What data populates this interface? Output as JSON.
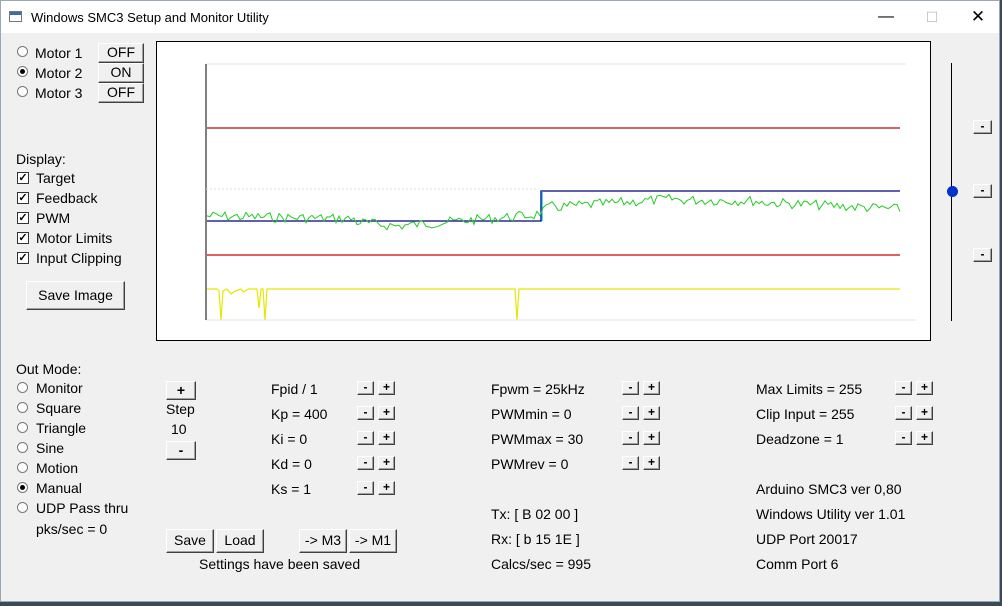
{
  "window": {
    "title": "Windows SMC3 Setup and Monitor Utility",
    "min_icon": "minimize-icon",
    "max_icon": "maximize-icon",
    "close_icon": "close-icon"
  },
  "motors": [
    {
      "label": "Motor 1",
      "state": "OFF",
      "selected": false
    },
    {
      "label": "Motor 2",
      "state": "ON",
      "selected": true
    },
    {
      "label": "Motor 3",
      "state": "OFF",
      "selected": false
    }
  ],
  "display": {
    "heading": "Display:",
    "items": [
      {
        "label": "Target",
        "checked": true
      },
      {
        "label": "Feedback",
        "checked": true
      },
      {
        "label": "PWM",
        "checked": true
      },
      {
        "label": "Motor Limits",
        "checked": true
      },
      {
        "label": "Input Clipping",
        "checked": true
      }
    ],
    "save_image": "Save Image"
  },
  "out_mode": {
    "heading": "Out Mode:",
    "items": [
      {
        "label": "Monitor",
        "selected": false
      },
      {
        "label": "Square",
        "selected": false
      },
      {
        "label": "Triangle",
        "selected": false
      },
      {
        "label": "Sine",
        "selected": false
      },
      {
        "label": "Motion",
        "selected": false
      },
      {
        "label": "Manual",
        "selected": true
      },
      {
        "label": "UDP Pass thru",
        "selected": false
      }
    ],
    "pks": "pks/sec = 0"
  },
  "step": {
    "plus": "+",
    "label": "Step",
    "value": "10",
    "minus": "-"
  },
  "pid": [
    {
      "label": "Fpid / 1"
    },
    {
      "label": "Kp = 400"
    },
    {
      "label": "Ki = 0"
    },
    {
      "label": "Kd = 0"
    },
    {
      "label": "Ks = 1"
    }
  ],
  "pwm": [
    {
      "label": "Fpwm = 25kHz"
    },
    {
      "label": "PWMmin = 0"
    },
    {
      "label": "PWMmax = 30"
    },
    {
      "label": "PWMrev = 0"
    }
  ],
  "limits": [
    {
      "label": "Max Limits = 255"
    },
    {
      "label": "Clip Input = 255"
    },
    {
      "label": "Deadzone = 1"
    }
  ],
  "pm": {
    "minus": "-",
    "plus": "+"
  },
  "comms": {
    "tx": "Tx: [ B 02 00 ]",
    "rx": "Rx: [ b 15 1E ]",
    "calcs": "Calcs/sec = 995"
  },
  "info": {
    "arduino": "Arduino SMC3 ver 0,80",
    "utility": "Windows Utility ver 1.01",
    "udp": "UDP Port 20017",
    "comm": "Comm Port 6"
  },
  "buttons": {
    "save": "Save",
    "load": "Load",
    "to_m3": "-> M3",
    "to_m1": "-> M1"
  },
  "status": "Settings have been saved",
  "scale_buttons": [
    "-",
    "-",
    "-"
  ],
  "trace_colors": {
    "target": "#000080",
    "feedback": "#22cc22",
    "limits": "#cc0000",
    "pwm": "#e6e600",
    "clip": "#bbbbbb",
    "target_step": "#00aaff"
  }
}
